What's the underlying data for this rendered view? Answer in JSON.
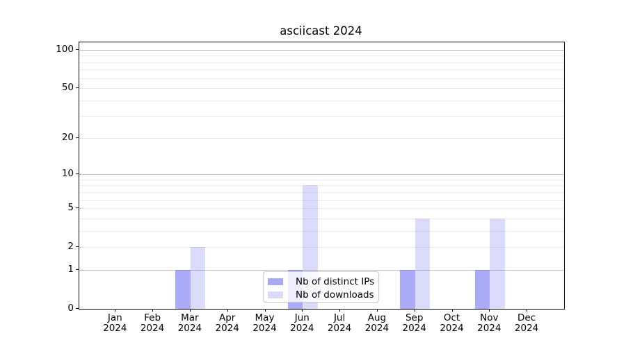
{
  "chart_data": {
    "type": "bar",
    "title": "asciicast 2024",
    "x_tick_months": [
      "Jan",
      "Feb",
      "Mar",
      "Apr",
      "May",
      "Jun",
      "Jul",
      "Aug",
      "Sep",
      "Oct",
      "Nov",
      "Dec"
    ],
    "x_tick_year": "2024",
    "y_ticks": [
      0,
      1,
      2,
      5,
      10,
      20,
      50,
      100
    ],
    "y_scale": "log10(1+v)",
    "y_major_gridlines": [
      1,
      10,
      100
    ],
    "y_minor_gridlines": [
      2,
      3,
      4,
      5,
      6,
      7,
      8,
      9,
      20,
      30,
      40,
      50,
      60,
      70,
      80,
      90
    ],
    "series": [
      {
        "name": "Nb of distinct IPs",
        "display_color_hex": "#a9a9f7",
        "base_color": "#5656f1",
        "alpha": 0.5,
        "values": [
          0,
          0,
          1,
          0,
          0,
          1,
          0,
          0,
          1,
          0,
          1,
          0
        ]
      },
      {
        "name": "Nb of downloads",
        "display_color_hex": "#dbdbfb",
        "base_color": "#5656f1",
        "alpha": 0.21,
        "values": [
          0,
          0,
          2,
          0,
          0,
          8,
          0,
          0,
          4,
          0,
          4,
          0
        ]
      }
    ],
    "legend_position": "bottom-center",
    "colors": {
      "grid_major": "#c4c4c4",
      "grid_minor": "#ebebeb",
      "spine": "#000000",
      "text": "#000000",
      "background": "#ffffff"
    }
  }
}
